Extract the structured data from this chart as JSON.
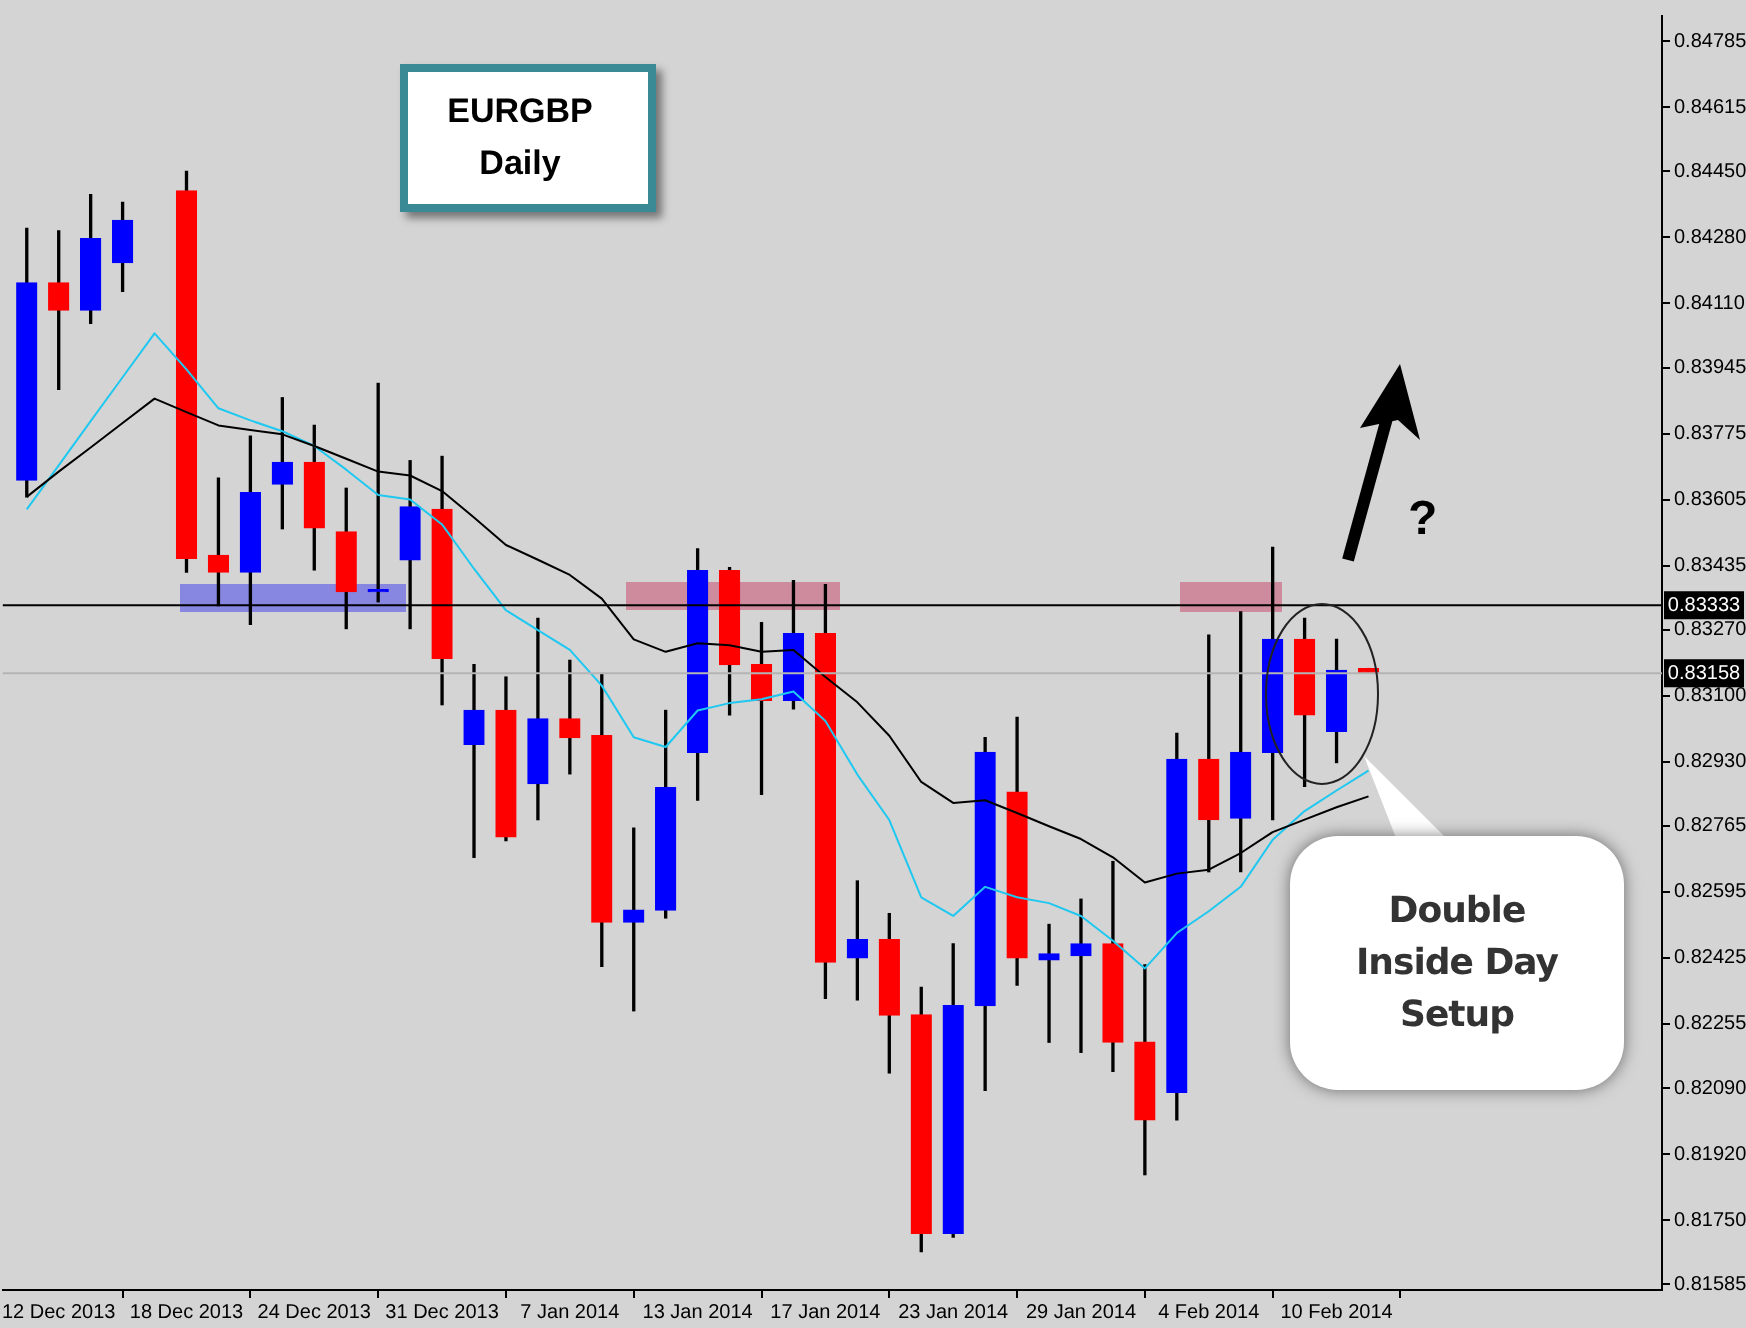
{
  "chart_data": {
    "type": "candlestick",
    "title": "EURGBP Daily",
    "categories": [
      null,
      "12 Dec 2013",
      null,
      null,
      null,
      "18 Dec 2013",
      null,
      null,
      null,
      "24 Dec 2013",
      null,
      null,
      null,
      "31 Dec 2013",
      null,
      null,
      null,
      "7 Jan 2014",
      null,
      null,
      null,
      "13 Jan 2014",
      null,
      null,
      null,
      "17 Jan 2014",
      null,
      null,
      null,
      "23 Jan 2014",
      null,
      null,
      null,
      "29 Jan 2014",
      null,
      null,
      null,
      "4 Feb 2014",
      null,
      null,
      null,
      "10 Feb 2014",
      null
    ],
    "ohlc": [
      [
        0.83655,
        0.84303,
        0.83612,
        0.84163
      ],
      [
        0.84163,
        0.84297,
        0.83889,
        0.84093
      ],
      [
        0.84093,
        0.8439,
        0.84059,
        0.84277
      ],
      [
        0.84215,
        0.8437,
        0.84141,
        0.84324
      ],
      null,
      [
        0.844,
        0.8445,
        0.83418,
        0.83454
      ],
      [
        0.83461,
        0.8366,
        0.83332,
        0.83418
      ],
      [
        0.83418,
        0.83768,
        0.83284,
        0.83623
      ],
      [
        0.83645,
        0.83867,
        0.8353,
        0.83701
      ],
      [
        0.83701,
        0.83796,
        0.83424,
        0.83532
      ],
      [
        0.83522,
        0.83634,
        0.83273,
        0.83368
      ],
      [
        0.83368,
        0.83904,
        0.83342,
        0.83372
      ],
      [
        0.8345,
        0.83705,
        0.83273,
        0.83586
      ],
      [
        0.8358,
        0.83716,
        0.83077,
        0.83196
      ],
      [
        0.82975,
        0.8318,
        0.82684,
        0.83062
      ],
      [
        0.83062,
        0.83148,
        0.82727,
        0.82737
      ],
      [
        0.82874,
        0.83299,
        0.82781,
        0.8304
      ],
      [
        0.8304,
        0.83191,
        0.82899,
        0.82992
      ],
      [
        0.82997,
        0.83154,
        0.82403,
        0.82517
      ],
      [
        0.82517,
        0.82759,
        0.82289,
        0.82548
      ],
      [
        0.82548,
        0.83062,
        0.82528,
        0.82863
      ],
      [
        0.82954,
        0.83478,
        0.82831,
        0.83422
      ],
      [
        0.83422,
        0.8343,
        0.83051,
        0.8318
      ],
      [
        0.8318,
        0.83288,
        0.82846,
        0.83088
      ],
      [
        0.83088,
        0.83396,
        0.83066,
        0.8326
      ],
      [
        0.8326,
        0.83386,
        0.82321,
        0.82414
      ],
      [
        0.82425,
        0.82623,
        0.82317,
        0.82472
      ],
      [
        0.82472,
        0.82539,
        0.82129,
        0.82278
      ],
      [
        0.82278,
        0.82349,
        0.81669,
        0.81716
      ],
      [
        0.81716,
        0.82461,
        0.81706,
        0.82302
      ],
      [
        0.82302,
        0.82992,
        0.82084,
        0.82954
      ],
      [
        0.82852,
        0.83044,
        0.82355,
        0.82425
      ],
      [
        0.8242,
        0.82511,
        0.82208,
        0.82435
      ],
      [
        0.82431,
        0.82576,
        0.82182,
        0.82461
      ],
      [
        0.82461,
        0.82673,
        0.82133,
        0.82208
      ],
      [
        0.82208,
        0.82407,
        0.81867,
        0.82008
      ],
      [
        0.82079,
        0.83003,
        0.82008,
        0.82936
      ],
      [
        0.82936,
        0.83256,
        0.82647,
        0.82781
      ],
      [
        0.82785,
        0.83316,
        0.82647,
        0.82954
      ],
      [
        0.82954,
        0.83482,
        0.82781,
        0.83245
      ],
      [
        0.83245,
        0.83299,
        0.82867,
        0.83051
      ],
      [
        0.83008,
        0.83245,
        0.82928,
        0.83165
      ],
      [
        0.8317,
        0.8317,
        0.83158,
        0.83158
      ]
    ],
    "colors": [
      "#0000ff",
      "#ff0000",
      "#0000ff",
      "#0000ff",
      null,
      "#ff0000",
      "#ff0000",
      "#0000ff",
      "#0000ff",
      "#ff0000",
      "#ff0000",
      "#0000ff",
      "#0000ff",
      "#ff0000",
      "#0000ff",
      "#ff0000",
      "#0000ff",
      "#ff0000",
      "#ff0000",
      "#0000ff",
      "#0000ff",
      "#0000ff",
      "#ff0000",
      "#ff0000",
      "#0000ff",
      "#ff0000",
      "#0000ff",
      "#ff0000",
      "#ff0000",
      "#0000ff",
      "#0000ff",
      "#ff0000",
      "#0000ff",
      "#0000ff",
      "#ff0000",
      "#ff0000",
      "#0000ff",
      "#ff0000",
      "#0000ff",
      "#0000ff",
      "#ff0000",
      "#0000ff",
      "#ff0000"
    ],
    "series": [
      {
        "type": "line",
        "color": "#000000",
        "values": [
          0.83612,
          0.83677,
          0.83739,
          0.83802,
          0.83865,
          0.8383,
          0.83796,
          0.83784,
          0.83773,
          0.83743,
          0.8371,
          0.83677,
          0.83667,
          0.83627,
          0.83559,
          0.83488,
          0.8345,
          0.83411,
          0.8335,
          0.83245,
          0.83213,
          0.83235,
          0.8323,
          0.83213,
          0.83218,
          0.83148,
          0.83083,
          0.82997,
          0.82878,
          0.82824,
          0.82831,
          0.82798,
          0.82764,
          0.82731,
          0.82684,
          0.82619,
          0.82642,
          0.82652,
          0.82695,
          0.82749,
          0.82781,
          0.82813,
          0.82841
        ]
      },
      {
        "type": "line",
        "color": "#1ec8f0",
        "values": [
          0.8358,
          0.83693,
          0.83807,
          0.8392,
          0.84033,
          0.8394,
          0.8384,
          0.83809,
          0.83781,
          0.83743,
          0.83682,
          0.83617,
          0.83605,
          0.83541,
          0.83427,
          0.8332,
          0.83269,
          0.83218,
          0.83126,
          0.82993,
          0.82968,
          0.83062,
          0.83081,
          0.83091,
          0.83111,
          0.83035,
          0.82897,
          0.8278,
          0.82581,
          0.82533,
          0.82608,
          0.82581,
          0.82566,
          0.82533,
          0.82469,
          0.82398,
          0.82489,
          0.82545,
          0.82608,
          0.82729,
          0.82803,
          0.82856,
          0.82907
        ]
      }
    ],
    "ylim": [
      0.8157,
      0.8485
    ],
    "yticks": [
      0.84785,
      0.84615,
      {
        "value": 0.8445,
        "label": "0.84450"
      },
      {
        "value": 0.8428,
        "label": "0.84280"
      },
      {
        "value": 0.8411,
        "label": "0.84110"
      },
      0.83945,
      0.83775,
      0.83605,
      0.83435,
      {
        "value": 0.8327,
        "label": "0.83270"
      },
      {
        "value": 0.831,
        "label": "0.83100"
      },
      {
        "value": 0.8293,
        "label": "0.82930"
      },
      0.82765,
      0.82595,
      0.82425,
      0.82255,
      {
        "value": 0.8209,
        "label": "0.82090"
      },
      {
        "value": 0.8192,
        "label": "0.81920"
      },
      {
        "value": 0.8175,
        "label": "0.81750"
      },
      0.81585
    ],
    "ref_lines": [
      {
        "axis": "y",
        "value": 0.83333,
        "label": "0.83333",
        "color": "#000000"
      },
      {
        "axis": "y",
        "value": 0.83158,
        "label": "0.83158",
        "color": "#b4b4b4"
      }
    ],
    "annotations": [
      "?",
      "Double Inside Day Setup"
    ],
    "grid": false,
    "legend": false
  }
}
